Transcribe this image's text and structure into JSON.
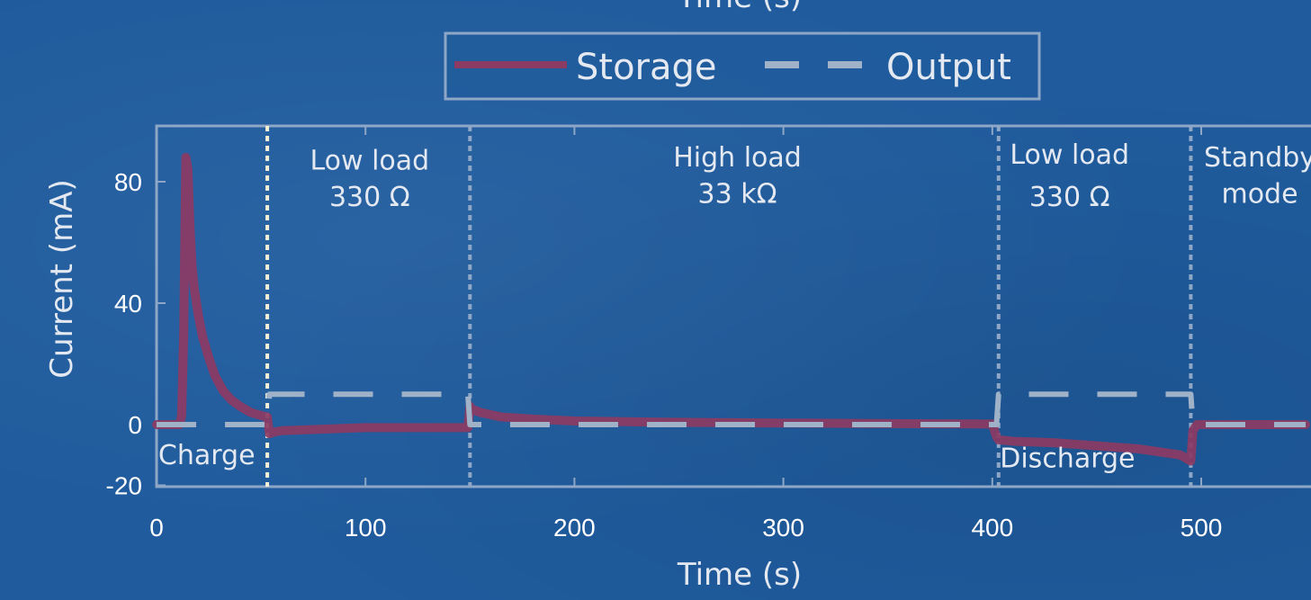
{
  "chart_data": {
    "type": "line",
    "title": "",
    "top_axis_label_partial": "Time (s)",
    "xlabel": "Time (s)",
    "ylabel": "Current (mA)",
    "xlim": [
      0,
      550
    ],
    "ylim": [
      -20,
      100
    ],
    "x_ticks": [
      0,
      100,
      200,
      300,
      400,
      500
    ],
    "y_ticks": [
      -20,
      0,
      40,
      80
    ],
    "legend": {
      "position": "top-center",
      "entries": [
        "Storage",
        "Output"
      ]
    },
    "colors": {
      "storage": "#8c3b63",
      "output": "#9fb2c8",
      "background": "#1f5b9d",
      "axis": "#8ea7c7",
      "boundary_charge": "#f2efd6",
      "boundary": "#8ea7c7"
    },
    "series": [
      {
        "name": "Storage",
        "style": "solid",
        "x": [
          0,
          11,
          12,
          13,
          14,
          15,
          16,
          17,
          18,
          20,
          22,
          25,
          28,
          32,
          36,
          40,
          45,
          50,
          53,
          54,
          56,
          60,
          80,
          100,
          120,
          140,
          149,
          150,
          151,
          155,
          165,
          180,
          200,
          240,
          300,
          360,
          400,
          402,
          403,
          410,
          430,
          450,
          470,
          490,
          495,
          496,
          498,
          520,
          550
        ],
        "y": [
          0,
          0,
          3,
          30,
          88,
          84,
          65,
          52,
          45,
          36,
          29,
          22,
          16,
          11,
          8,
          6,
          4,
          3,
          2.5,
          -3,
          -2.5,
          -2,
          -1.5,
          -1,
          -1,
          -1,
          -1,
          6,
          5,
          4,
          2.5,
          1.8,
          1.2,
          0.8,
          0.5,
          0.3,
          0.2,
          -4,
          -5,
          -5.5,
          -6,
          -7,
          -8,
          -10,
          -12,
          -2,
          0,
          0,
          0
        ]
      },
      {
        "name": "Output",
        "style": "dashed",
        "x": [
          0,
          53,
          54,
          149,
          150,
          402,
          403,
          495,
          496,
          550
        ],
        "y": [
          0,
          0,
          10,
          10,
          0,
          0,
          10,
          10,
          0,
          0
        ]
      }
    ],
    "region_boundaries": [
      53,
      150,
      403,
      495
    ],
    "annotations": [
      {
        "text": "Charge",
        "x": 24,
        "y": -13
      },
      {
        "text": "Low load",
        "x": 102,
        "y": 84
      },
      {
        "text": "330 Ω",
        "x": 102,
        "y": 72
      },
      {
        "text": "High load",
        "x": 278,
        "y": 85
      },
      {
        "text": "33 kΩ",
        "x": 278,
        "y": 73
      },
      {
        "text": "Low load",
        "x": 437,
        "y": 86
      },
      {
        "text": "330 Ω",
        "x": 437,
        "y": 72
      },
      {
        "text": "Discharge",
        "x": 436,
        "y": -14
      },
      {
        "text": "Standby",
        "x": 528,
        "y": 85
      },
      {
        "text": "mode",
        "x": 528,
        "y": 73
      }
    ]
  }
}
